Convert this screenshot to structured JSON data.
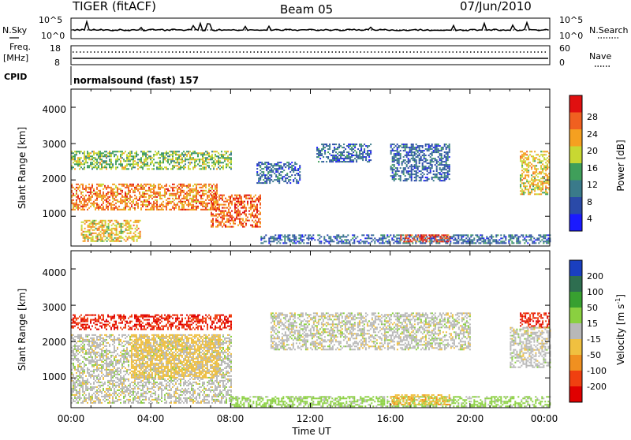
{
  "header": {
    "radar": "TIGER (fitACF)",
    "beam": "Beam 05",
    "date": "07/Jun/2010"
  },
  "top_panels": {
    "noise_left_label": "N.Sky",
    "noise_right_label": "N.Search",
    "noise_left_ticks": [
      "10^5",
      "10^0"
    ],
    "noise_right_ticks": [
      "10^5",
      "10^0"
    ],
    "freq_left_label_1": "Freq.",
    "freq_left_label_2": "[MHz]",
    "freq_right_label": "Nave",
    "freq_left_ticks": [
      "18",
      "8"
    ],
    "freq_right_ticks": [
      "60",
      "0"
    ],
    "cpid_label": "CPID",
    "cpid_value": "normalsound (fast) 157"
  },
  "axes": {
    "ylabel": "Slant Range [km]",
    "yticks": [
      "1000",
      "2000",
      "3000",
      "4000"
    ],
    "xticks": [
      "00:00",
      "04:00",
      "08:00",
      "12:00",
      "16:00",
      "20:00",
      "00:00"
    ],
    "xlabel": "Time UT"
  },
  "colorbars": {
    "power": {
      "label": "Power [dB]",
      "ticks": [
        "4",
        "8",
        "12",
        "16",
        "20",
        "24",
        "28"
      ],
      "colors": [
        "#1a1aff",
        "#2a4aa8",
        "#3a7a8a",
        "#3f9f5a",
        "#c8d832",
        "#f5a020",
        "#f06020",
        "#e01010"
      ]
    },
    "velocity": {
      "label": "Velocity [m s",
      "label_sup": "-1",
      "label_end": "]",
      "ticks": [
        "200",
        "100",
        "50",
        "15",
        "-15",
        "-50",
        "-100",
        "-200"
      ],
      "colors": [
        "#1a3fc0",
        "#2e6e50",
        "#38a030",
        "#8ad040",
        "#b8b8b8",
        "#f0c040",
        "#f09020",
        "#f04010",
        "#e00000"
      ]
    }
  },
  "chart_data": [
    {
      "type": "heatmap",
      "title": "Power",
      "x_range_hours": [
        0,
        24
      ],
      "ylim": [
        180,
        4500
      ],
      "z_label": "Power [dB]",
      "regions": [
        {
          "t0": 0.0,
          "t1": 7.3,
          "r0": 1200,
          "r1": 1900,
          "value": 24
        },
        {
          "t0": 0.5,
          "t1": 3.5,
          "r0": 300,
          "r1": 900,
          "value": 20
        },
        {
          "t0": 0.0,
          "t1": 8.0,
          "r0": 2300,
          "r1": 2800,
          "value": 16
        },
        {
          "t0": 7.0,
          "t1": 9.5,
          "r0": 700,
          "r1": 1600,
          "value": 26
        },
        {
          "t0": 9.5,
          "t1": 24.0,
          "r0": 250,
          "r1": 500,
          "value": 8
        },
        {
          "t0": 9.3,
          "t1": 11.5,
          "r0": 1900,
          "r1": 2500,
          "value": 8
        },
        {
          "t0": 12.3,
          "t1": 15.0,
          "r0": 2500,
          "r1": 3000,
          "value": 8
        },
        {
          "t0": 16.0,
          "t1": 19.0,
          "r0": 2000,
          "r1": 3000,
          "value": 8
        },
        {
          "t0": 16.5,
          "t1": 19.0,
          "r0": 300,
          "r1": 500,
          "value": 28
        },
        {
          "t0": 22.5,
          "t1": 24.0,
          "r0": 1600,
          "r1": 2800,
          "value": 20
        }
      ]
    },
    {
      "type": "heatmap",
      "title": "Velocity",
      "x_range_hours": [
        0,
        24
      ],
      "ylim": [
        180,
        4500
      ],
      "z_label": "Velocity [m s-1]",
      "regions": [
        {
          "t0": 0.0,
          "t1": 8.0,
          "r0": 300,
          "r1": 2200,
          "value": 0
        },
        {
          "t0": 0.0,
          "t1": 8.0,
          "r0": 2350,
          "r1": 2750,
          "value": -200
        },
        {
          "t0": 3.0,
          "t1": 7.5,
          "r0": 1000,
          "r1": 2200,
          "value": -30
        },
        {
          "t0": 8.0,
          "t1": 24.0,
          "r0": 200,
          "r1": 500,
          "value": 30
        },
        {
          "t0": 16.0,
          "t1": 19.0,
          "r0": 250,
          "r1": 550,
          "value": -40
        },
        {
          "t0": 10.0,
          "t1": 20.0,
          "r0": 1800,
          "r1": 2800,
          "value": 0
        },
        {
          "t0": 22.5,
          "t1": 24.0,
          "r0": 2400,
          "r1": 2800,
          "value": -200
        },
        {
          "t0": 22.0,
          "t1": 24.0,
          "r0": 1300,
          "r1": 2400,
          "value": 0
        }
      ]
    }
  ]
}
